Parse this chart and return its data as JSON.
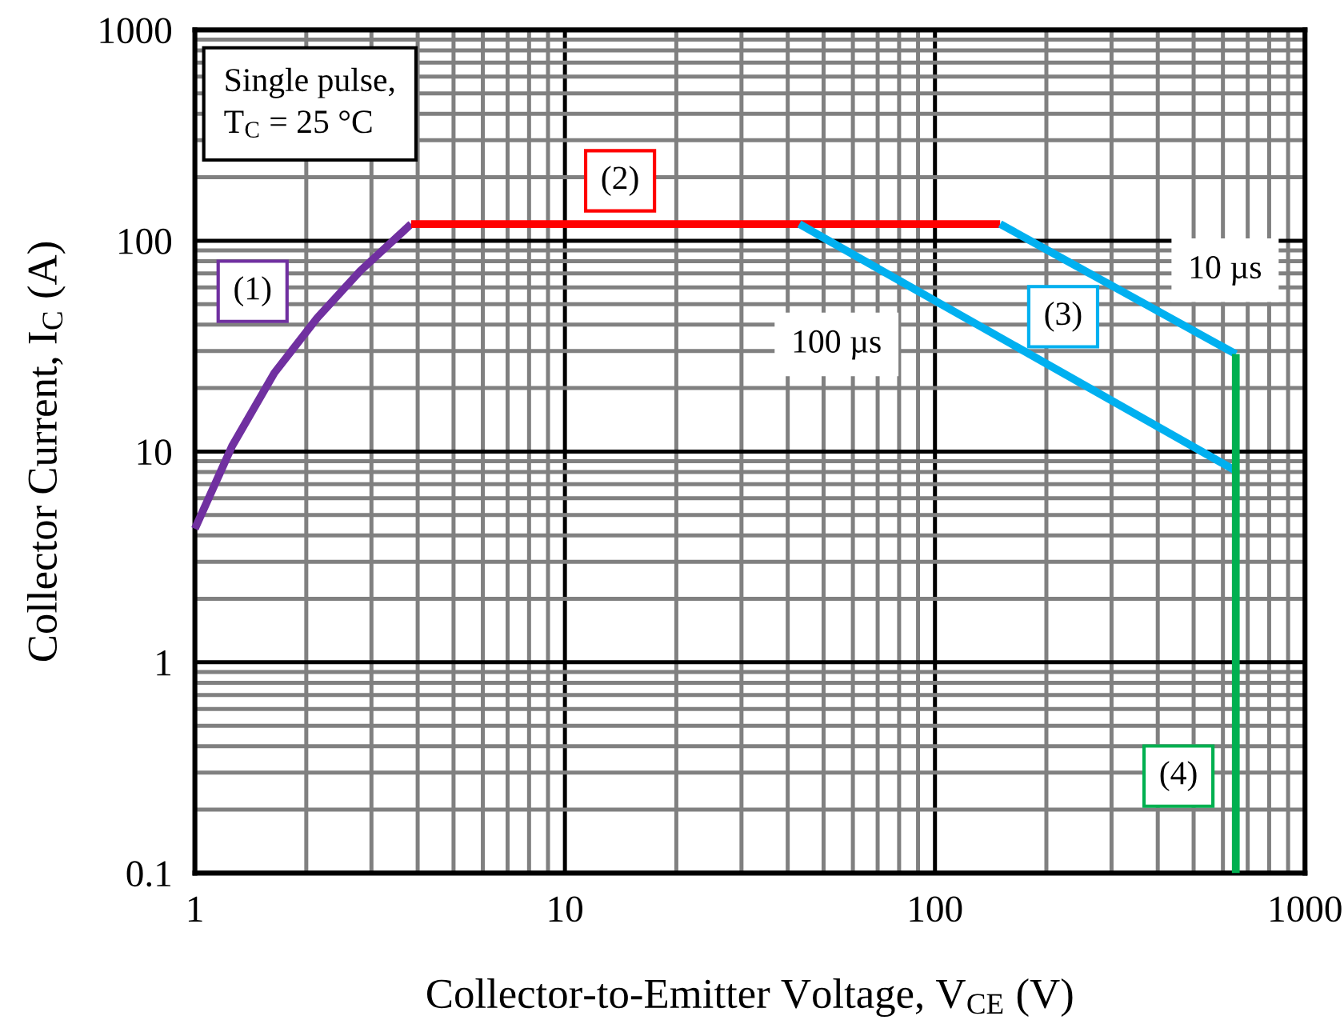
{
  "chart_data": {
    "type": "line",
    "xlabel": "Collector-to-Emitter Voltage, V$_{CE}$ (V)",
    "ylabel": "Collector Current, I$_{C}$ (A)",
    "log": "xy",
    "grid": true,
    "legend": false,
    "marker": "none",
    "line_style": "solid",
    "xlim": [
      1,
      1000
    ],
    "xticks": [
      1,
      10,
      100,
      1000
    ],
    "ylim": [
      0.1,
      1000
    ],
    "yticks": [
      0.1,
      1,
      10,
      100,
      1000
    ],
    "series": [
      {
        "name": "(1)",
        "color": "#7030a0",
        "x": [
          1,
          1.26,
          1.64,
          2.14,
          2.8,
          3.84
        ],
        "values": [
          4.3,
          10.6,
          23.6,
          43,
          72,
          120
        ]
      },
      {
        "name": "(2)",
        "color": "#ff0000",
        "x": [
          3.84,
          150
        ],
        "values": [
          120,
          120
        ]
      },
      {
        "name": "10 µs",
        "color": "#00b0f0",
        "x": [
          150,
          650
        ],
        "values": [
          120,
          29
        ]
      },
      {
        "name": "100 µs",
        "color": "#00b0f0",
        "x": [
          43,
          650
        ],
        "values": [
          120,
          8.1
        ]
      },
      {
        "name": "(4)",
        "color": "#00b050",
        "x": [
          650,
          650
        ],
        "values": [
          29,
          0.1
        ]
      }
    ],
    "annotations": [
      "Single pulse,\nT$_{C}$ = 25 °C",
      {
        "text": "(3)",
        "x": 222,
        "y": 43.6
      }
    ]
  }
}
